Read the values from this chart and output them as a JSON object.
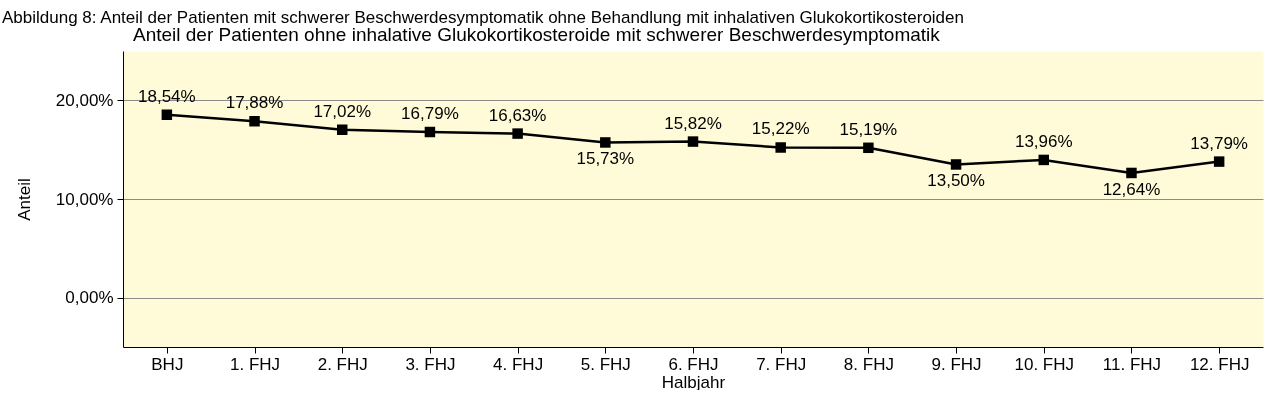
{
  "chart_data": {
    "type": "line",
    "title": "Anteil der Patienten ohne inhalative Glukokortikosteroide mit schwerer Beschwerdesymptomatik",
    "annotations": [
      "Abbildung 8: Anteil der Patienten mit schwerer Beschwerdesymptomatik ohne Behandlung mit inhalativen Glukokortikosteroiden"
    ],
    "xlabel": "Halbjahr",
    "ylabel": "Anteil",
    "categories": [
      "BHJ",
      "1. FHJ",
      "2. FHJ",
      "3. FHJ",
      "4. FHJ",
      "5. FHJ",
      "6. FHJ",
      "7. FHJ",
      "8. FHJ",
      "9. FHJ",
      "10. FHJ",
      "11. FHJ",
      "12. FHJ"
    ],
    "series": [
      {
        "color": "#000000",
        "values": [
          18.54,
          17.88,
          17.02,
          16.79,
          16.63,
          15.73,
          15.82,
          15.22,
          15.19,
          13.5,
          13.96,
          12.64,
          13.79
        ],
        "value_labels": [
          "18,54%",
          "17,88%",
          "17,02%",
          "16,79%",
          "16,63%",
          "15,73%",
          "15,82%",
          "15,22%",
          "15,19%",
          "13,50%",
          "13,96%",
          "12,64%",
          "13,79%"
        ]
      }
    ],
    "ylim": [
      -5,
      25
    ],
    "yticks": [
      {
        "value": 0,
        "label": "0,00%"
      },
      {
        "value": 10,
        "label": "10,00%"
      },
      {
        "value": 20,
        "label": "20,00%"
      }
    ],
    "grid": "y",
    "marker": "square",
    "line_style": "solid"
  }
}
